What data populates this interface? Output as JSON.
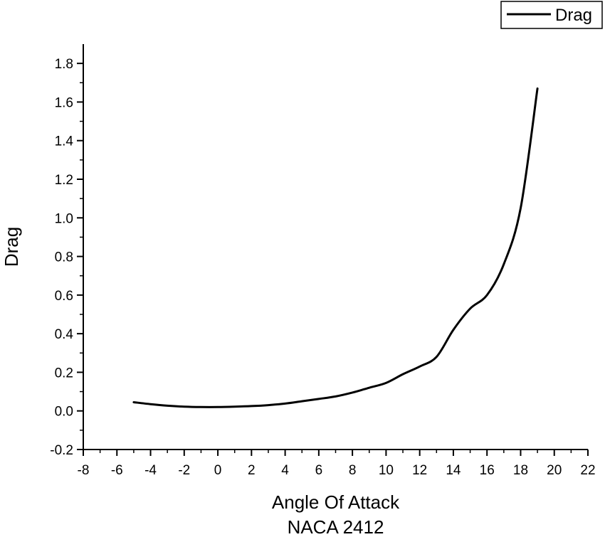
{
  "chart_data": {
    "type": "line",
    "title": "NACA 2412",
    "xlabel": "Angle Of Attack",
    "ylabel": "Drag",
    "xlim": [
      -8,
      22
    ],
    "ylim": [
      -0.2,
      1.9
    ],
    "xticks": [
      -8,
      -6,
      -4,
      -2,
      0,
      2,
      4,
      6,
      8,
      10,
      12,
      14,
      16,
      18,
      20,
      22
    ],
    "yticks": [
      -0.2,
      0.0,
      0.2,
      0.4,
      0.6,
      0.8,
      1.0,
      1.2,
      1.4,
      1.6,
      1.8
    ],
    "xtick_labels": [
      "-8",
      "-6",
      "-4",
      "-2",
      "0",
      "2",
      "4",
      "6",
      "8",
      "10",
      "12",
      "14",
      "16",
      "18",
      "20",
      "22"
    ],
    "ytick_labels": [
      "-0.2",
      "0.0",
      "0.2",
      "0.4",
      "0.6",
      "0.8",
      "1.0",
      "1.2",
      "1.4",
      "1.6",
      "1.8"
    ],
    "grid": false,
    "legend_position": "top-right",
    "series": [
      {
        "name": "Drag",
        "color": "#000000",
        "x": [
          -5,
          -4,
          -3,
          -2,
          -1,
          0,
          1,
          2,
          3,
          4,
          5,
          6,
          7,
          8,
          9,
          10,
          11,
          12,
          13,
          14,
          15,
          16,
          17,
          18,
          19
        ],
        "y": [
          0.045,
          0.035,
          0.027,
          0.022,
          0.02,
          0.02,
          0.022,
          0.025,
          0.03,
          0.038,
          0.05,
          0.062,
          0.075,
          0.095,
          0.12,
          0.145,
          0.19,
          0.23,
          0.28,
          0.42,
          0.53,
          0.6,
          0.76,
          1.05,
          1.67
        ]
      }
    ]
  }
}
